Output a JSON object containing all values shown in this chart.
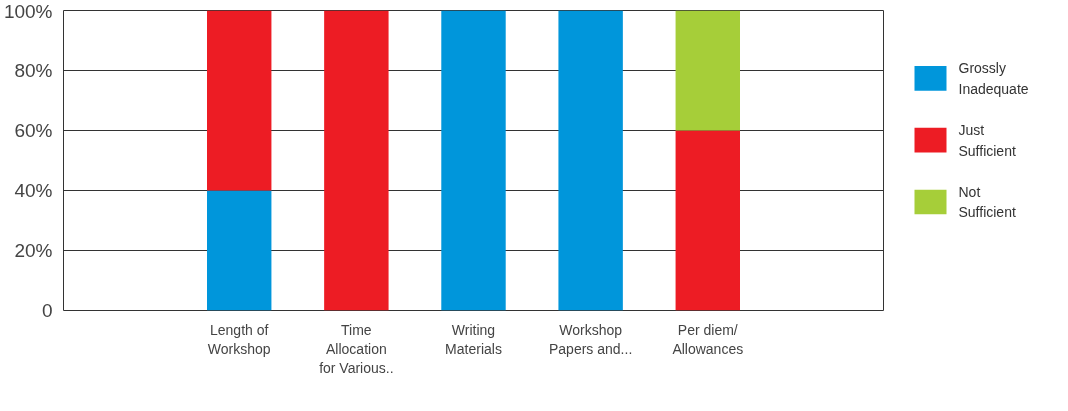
{
  "chart_data": {
    "type": "bar",
    "stacked": true,
    "categories": [
      null,
      "Length of Workshop",
      "Time Allocation for Various..",
      "Writing Materials",
      "Workshop Papers and...",
      "Per diem/ Allowances",
      null
    ],
    "series": [
      {
        "name": "Grossly Inadequate",
        "color": "#0096db",
        "values": [
          null,
          40,
          0,
          100,
          100,
          0,
          null
        ]
      },
      {
        "name": "Just Sufficient",
        "color": "#ed1c24",
        "values": [
          null,
          60,
          100,
          0,
          0,
          60,
          null
        ]
      },
      {
        "name": "Not Sufficient",
        "color": "#a6ce39",
        "values": [
          null,
          0,
          0,
          0,
          0,
          40,
          null
        ]
      }
    ],
    "ylim": [
      0,
      100
    ],
    "yticks": [
      {
        "value": 0,
        "label": "0"
      },
      {
        "value": 20,
        "label": "20%"
      },
      {
        "value": 40,
        "label": "40%"
      },
      {
        "value": 60,
        "label": "60%"
      },
      {
        "value": 80,
        "label": "80%"
      },
      {
        "value": 100,
        "label": "100%"
      }
    ],
    "grid": "y",
    "legend": "right"
  }
}
